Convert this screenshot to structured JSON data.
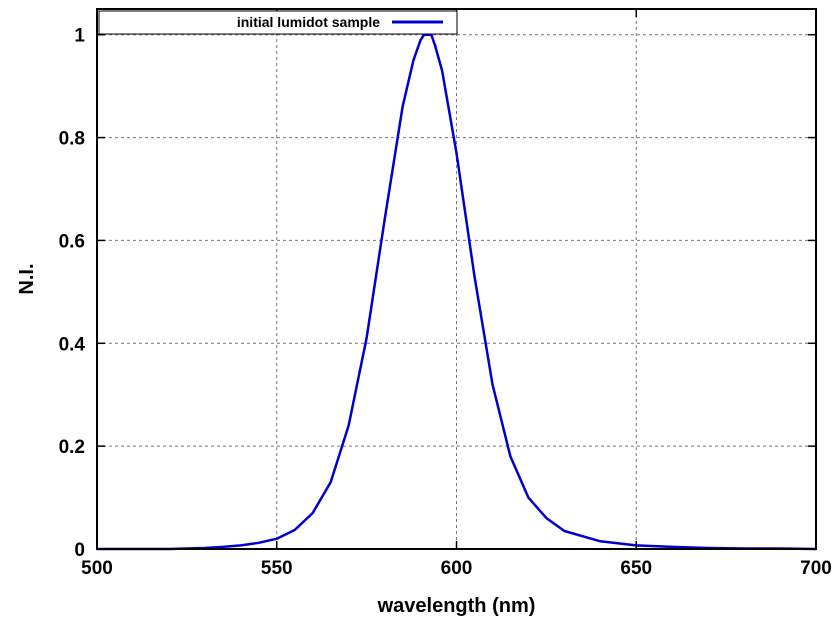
{
  "chart_data": {
    "type": "line",
    "title": "",
    "xlabel": "wavelength (nm)",
    "ylabel": "N.I.",
    "xlim": [
      500,
      700
    ],
    "ylim": [
      0,
      1.05
    ],
    "x_ticks": [
      500,
      550,
      600,
      650,
      700
    ],
    "y_ticks": [
      0,
      0.2,
      0.4,
      0.6,
      0.8,
      1
    ],
    "x_tick_labels": [
      "500",
      "550",
      "600",
      "650",
      "700"
    ],
    "y_tick_labels": [
      "0",
      "0.2",
      "0.4",
      "0.6",
      "0.8",
      "1"
    ],
    "grid": true,
    "legend_position": "top-left",
    "series": [
      {
        "name": "initial lumidot sample",
        "color": "#0000cc",
        "x": [
          500,
          510,
          520,
          530,
          535,
          540,
          545,
          550,
          555,
          560,
          565,
          570,
          575,
          580,
          585,
          588,
          590,
          591,
          592,
          593,
          594,
          596,
          600,
          605,
          610,
          615,
          620,
          625,
          630,
          640,
          650,
          660,
          670,
          680,
          690,
          700
        ],
        "y": [
          0.0,
          0.0,
          0.0,
          0.002,
          0.004,
          0.007,
          0.012,
          0.02,
          0.037,
          0.07,
          0.13,
          0.24,
          0.41,
          0.64,
          0.86,
          0.95,
          0.99,
          1.0,
          1.0,
          1.0,
          0.98,
          0.93,
          0.77,
          0.53,
          0.32,
          0.18,
          0.1,
          0.06,
          0.035,
          0.015,
          0.007,
          0.004,
          0.002,
          0.001,
          0.001,
          0.0
        ]
      }
    ]
  }
}
